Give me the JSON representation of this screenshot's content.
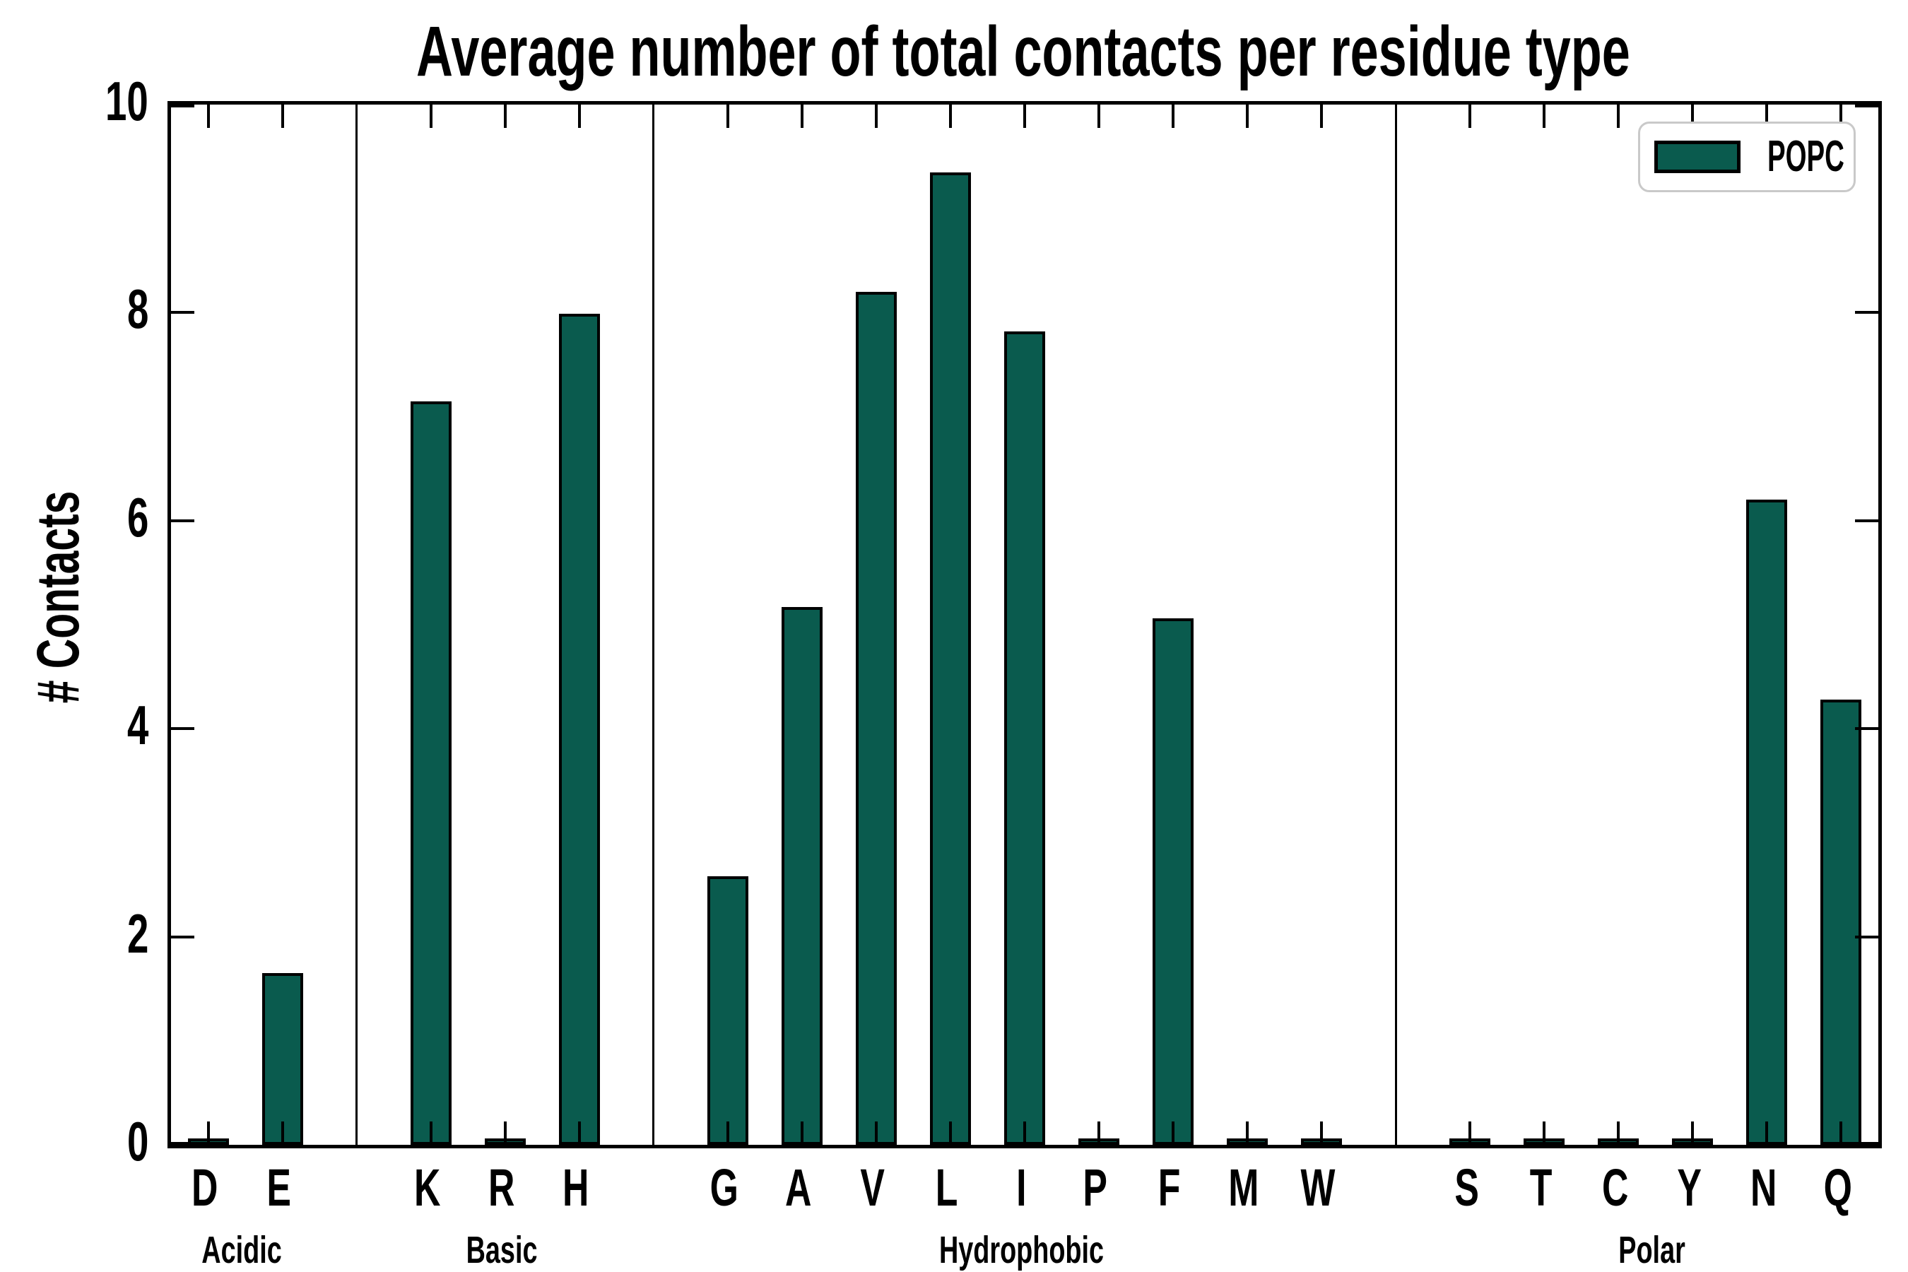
{
  "chart_data": {
    "type": "bar",
    "title": "Average number of total contacts per residue type",
    "ylabel": "# Contacts",
    "xlabel": "",
    "ylim": [
      0,
      10
    ],
    "yticks": [
      0,
      2,
      4,
      6,
      8,
      10
    ],
    "grid": false,
    "legend": [
      "POPC"
    ],
    "legend_position": "upper right",
    "bar_color": "#0a5b4e",
    "bar_edge_color": "#000000",
    "groups": [
      {
        "label": "Acidic",
        "categories": [
          "D",
          "E"
        ],
        "values": [
          0.02,
          1.65
        ]
      },
      {
        "label": "Basic",
        "categories": [
          "K",
          "R",
          "H"
        ],
        "values": [
          7.15,
          0.02,
          7.99
        ]
      },
      {
        "label": "Hydrophobic",
        "categories": [
          "G",
          "A",
          "V",
          "L",
          "I",
          "P",
          "F",
          "M",
          "W"
        ],
        "values": [
          2.58,
          5.17,
          8.2,
          9.35,
          7.82,
          0.02,
          5.06,
          0.02,
          0.02
        ]
      },
      {
        "label": "Polar",
        "categories": [
          "S",
          "T",
          "C",
          "Y",
          "N",
          "Q"
        ],
        "values": [
          0.02,
          0.02,
          0.02,
          0.02,
          6.2,
          4.28
        ]
      }
    ]
  }
}
